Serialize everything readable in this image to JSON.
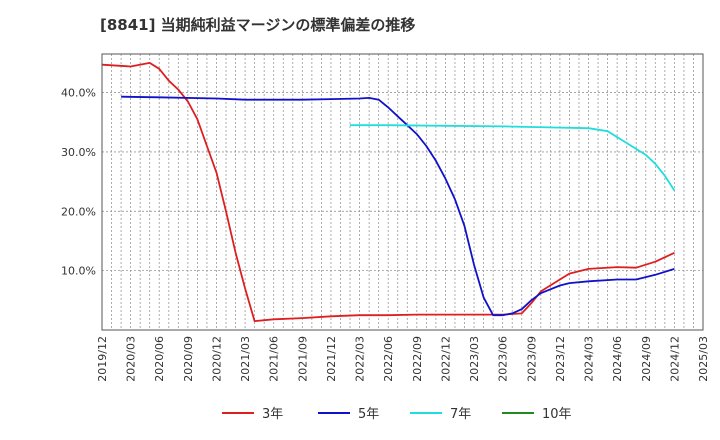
{
  "chart_data": {
    "type": "line",
    "title": "[8841]  当期純利益マージンの標準偏差の推移",
    "xlabel": "",
    "ylabel": "",
    "x_ticks": [
      "2019/12",
      "2020/03",
      "2020/06",
      "2020/09",
      "2020/12",
      "2021/03",
      "2021/06",
      "2021/09",
      "2021/12",
      "2022/03",
      "2022/06",
      "2022/09",
      "2022/12",
      "2023/03",
      "2023/06",
      "2023/09",
      "2023/12",
      "2024/03",
      "2024/06",
      "2024/09",
      "2024/12",
      "2025/03"
    ],
    "y_ticks": [
      "10.0%",
      "20.0%",
      "30.0%",
      "40.0%"
    ],
    "y_tick_values": [
      10,
      20,
      30,
      40
    ],
    "xlim": [
      "2019/12",
      "2025/03"
    ],
    "ylim": [
      0,
      46.5
    ],
    "grid": true,
    "legend_position": "bottom",
    "series": [
      {
        "name": "3年",
        "color": "#dd1f1f",
        "points": [
          [
            "2019/12",
            44.7
          ],
          [
            "2020/03",
            44.4
          ],
          [
            "2020/05",
            45.0
          ],
          [
            "2020/06",
            44.0
          ],
          [
            "2020/07",
            42.0
          ],
          [
            "2020/08",
            40.5
          ],
          [
            "2020/09",
            38.5
          ],
          [
            "2020/10",
            35.5
          ],
          [
            "2020/11",
            31.0
          ],
          [
            "2020/12",
            26.5
          ],
          [
            "2021/01",
            20.0
          ],
          [
            "2021/02",
            13.0
          ],
          [
            "2021/03",
            7.0
          ],
          [
            "2021/04",
            1.5
          ],
          [
            "2021/06",
            1.8
          ],
          [
            "2021/09",
            2.0
          ],
          [
            "2021/12",
            2.3
          ],
          [
            "2022/03",
            2.5
          ],
          [
            "2022/06",
            2.5
          ],
          [
            "2022/09",
            2.6
          ],
          [
            "2022/12",
            2.6
          ],
          [
            "2023/03",
            2.6
          ],
          [
            "2023/06",
            2.6
          ],
          [
            "2023/08",
            2.8
          ],
          [
            "2023/09",
            4.5
          ],
          [
            "2023/10",
            6.5
          ],
          [
            "2023/12",
            8.5
          ],
          [
            "2024/01",
            9.5
          ],
          [
            "2024/03",
            10.3
          ],
          [
            "2024/06",
            10.6
          ],
          [
            "2024/08",
            10.5
          ],
          [
            "2024/10",
            11.5
          ],
          [
            "2024/12",
            13.0
          ]
        ]
      },
      {
        "name": "5年",
        "color": "#1111cc",
        "points": [
          [
            "2020/02",
            39.3
          ],
          [
            "2020/06",
            39.2
          ],
          [
            "2020/12",
            39.0
          ],
          [
            "2021/03",
            38.8
          ],
          [
            "2021/06",
            38.8
          ],
          [
            "2021/09",
            38.8
          ],
          [
            "2021/12",
            38.9
          ],
          [
            "2022/03",
            39.0
          ],
          [
            "2022/04",
            39.1
          ],
          [
            "2022/05",
            38.8
          ],
          [
            "2022/06",
            37.5
          ],
          [
            "2022/07",
            36.0
          ],
          [
            "2022/08",
            34.5
          ],
          [
            "2022/09",
            33.0
          ],
          [
            "2022/10",
            31.0
          ],
          [
            "2022/11",
            28.5
          ],
          [
            "2022/12",
            25.5
          ],
          [
            "2023/01",
            22.0
          ],
          [
            "2023/02",
            17.5
          ],
          [
            "2023/03",
            11.0
          ],
          [
            "2023/04",
            5.5
          ],
          [
            "2023/05",
            2.5
          ],
          [
            "2023/06",
            2.5
          ],
          [
            "2023/07",
            2.8
          ],
          [
            "2023/08",
            3.5
          ],
          [
            "2023/09",
            5.0
          ],
          [
            "2023/10",
            6.2
          ],
          [
            "2023/12",
            7.5
          ],
          [
            "2024/01",
            7.9
          ],
          [
            "2024/03",
            8.2
          ],
          [
            "2024/06",
            8.5
          ],
          [
            "2024/08",
            8.5
          ],
          [
            "2024/10",
            9.3
          ],
          [
            "2024/12",
            10.3
          ]
        ]
      },
      {
        "name": "7年",
        "color": "#22dddd",
        "points": [
          [
            "2022/02",
            34.5
          ],
          [
            "2022/06",
            34.5
          ],
          [
            "2022/12",
            34.4
          ],
          [
            "2023/06",
            34.3
          ],
          [
            "2023/12",
            34.1
          ],
          [
            "2024/03",
            34.0
          ],
          [
            "2024/05",
            33.5
          ],
          [
            "2024/07",
            31.5
          ],
          [
            "2024/09",
            29.5
          ],
          [
            "2024/10",
            28.0
          ],
          [
            "2024/11",
            26.0
          ],
          [
            "2024/12",
            23.5
          ]
        ]
      },
      {
        "name": "10年",
        "color": "#228822",
        "points": []
      }
    ]
  }
}
